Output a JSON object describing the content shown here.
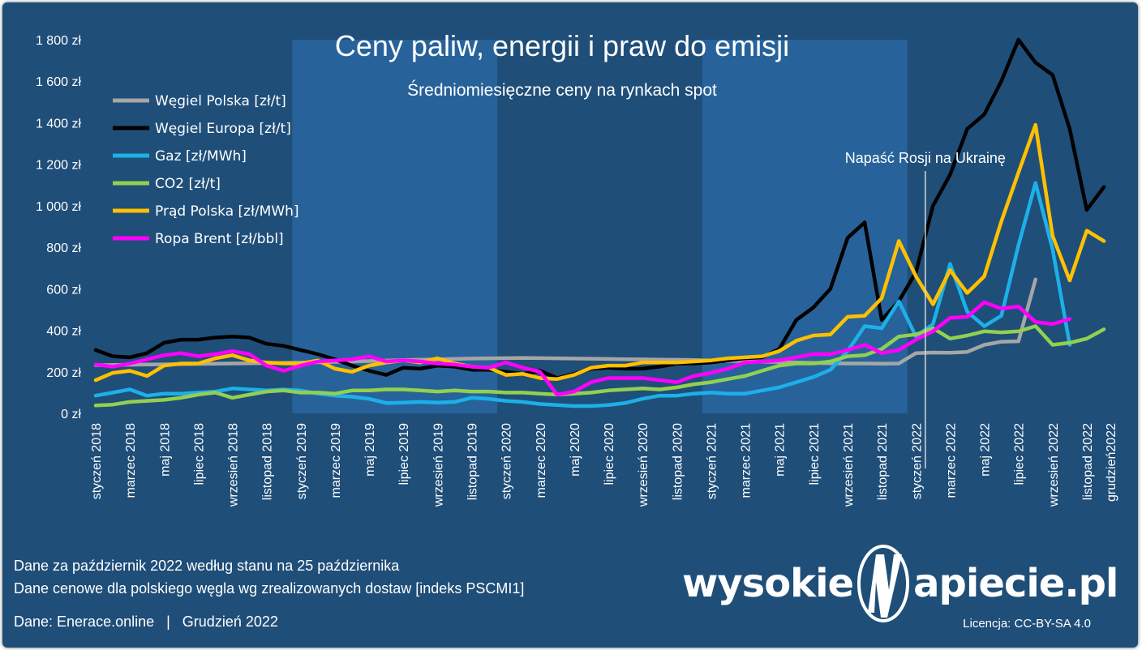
{
  "chart_data": {
    "type": "line",
    "title": "Ceny paliw, energii i praw do emisji",
    "subtitle": "Średniomiesięczne ceny na rynkach spot",
    "x": [
      "2018-01",
      "2018-02",
      "2018-03",
      "2018-04",
      "2018-05",
      "2018-06",
      "2018-07",
      "2018-08",
      "2018-09",
      "2018-10",
      "2018-11",
      "2018-12",
      "2019-01",
      "2019-02",
      "2019-03",
      "2019-04",
      "2019-05",
      "2019-06",
      "2019-07",
      "2019-08",
      "2019-09",
      "2019-10",
      "2019-11",
      "2019-12",
      "2020-01",
      "2020-02",
      "2020-03",
      "2020-04",
      "2020-05",
      "2020-06",
      "2020-07",
      "2020-08",
      "2020-09",
      "2020-10",
      "2020-11",
      "2020-12",
      "2021-01",
      "2021-02",
      "2021-03",
      "2021-04",
      "2021-05",
      "2021-06",
      "2021-07",
      "2021-08",
      "2021-09",
      "2021-10",
      "2021-11",
      "2021-12",
      "2022-01",
      "2022-02",
      "2022-03",
      "2022-04",
      "2022-05",
      "2022-06",
      "2022-07",
      "2022-08",
      "2022-09",
      "2022-10",
      "2022-11",
      "2022-12"
    ],
    "x_tick_labels": [
      "styczeń 2018",
      "marzec 2018",
      "maj 2018",
      "lipiec 2018",
      "wrzesień 2018",
      "listopad 2018",
      "styczeń 2019",
      "marzec 2019",
      "maj 2019",
      "lipiec 2019",
      "wrzesień 2019",
      "listopad 2019",
      "styczeń 2020",
      "marzec 2020",
      "maj 2020",
      "lipiec 2020",
      "wrzesień 2020",
      "listopad 2020",
      "styczeń 2021",
      "marzec 2021",
      "maj 2021",
      "lipiec 2021",
      "wrzesień 2021",
      "listopad 2021",
      "styczeń 2022",
      "marzec 2022",
      "maj 2022",
      "lipiec 2022",
      "wrzesień 2022",
      "listopad 2022",
      "grudzień2022"
    ],
    "y_ticks": [
      "0 zł",
      "200 zł",
      "400 zł",
      "600 zł",
      "800 zł",
      "1 000 zł",
      "1 200 zł",
      "1 400 zł",
      "1 600 zł",
      "1 800 zł"
    ],
    "ylim": [
      0,
      1800
    ],
    "y_unit": "zł",
    "series": [
      {
        "name": "Węgiel Polska [zł/t]",
        "color": "#a6a6a6",
        "values": [
          232,
          233,
          234,
          235,
          236,
          237,
          238,
          239,
          240,
          241,
          242,
          243,
          244,
          246,
          248,
          250,
          252,
          254,
          256,
          258,
          260,
          262,
          264,
          265,
          266,
          267,
          266,
          265,
          264,
          263,
          262,
          261,
          260,
          259,
          258,
          257,
          255,
          253,
          251,
          249,
          247,
          245,
          243,
          241,
          240,
          240,
          239,
          240,
          290,
          293,
          292,
          296,
          330,
          345,
          347,
          645,
          null,
          null,
          null,
          null
        ]
      },
      {
        "name": "Węgiel Europa [zł/t]",
        "color": "#000000",
        "values": [
          305,
          275,
          270,
          290,
          340,
          355,
          355,
          365,
          370,
          365,
          335,
          325,
          305,
          285,
          260,
          230,
          205,
          185,
          220,
          215,
          230,
          225,
          210,
          210,
          200,
          190,
          205,
          170,
          190,
          215,
          220,
          215,
          215,
          225,
          240,
          240,
          245,
          255,
          265,
          270,
          310,
          450,
          510,
          600,
          845,
          920,
          450,
          540,
          680,
          1000,
          1150,
          1370,
          1440,
          1600,
          1800,
          1690,
          1630,
          1370,
          980,
          1090
        ]
      },
      {
        "name": "Gaz [zł/MWh]",
        "color": "#1db0e8",
        "values": [
          85,
          100,
          115,
          85,
          95,
          95,
          100,
          105,
          120,
          115,
          110,
          115,
          110,
          95,
          85,
          80,
          70,
          50,
          52,
          55,
          52,
          55,
          75,
          70,
          60,
          55,
          45,
          40,
          35,
          35,
          40,
          50,
          70,
          85,
          85,
          95,
          100,
          95,
          95,
          110,
          125,
          150,
          175,
          210,
          300,
          420,
          410,
          540,
          370,
          430,
          720,
          490,
          420,
          470,
          810,
          1110,
          790,
          330,
          null,
          null
        ]
      },
      {
        "name": "CO2 [zł/t]",
        "color": "#92d050",
        "values": [
          38,
          42,
          55,
          60,
          65,
          75,
          90,
          100,
          75,
          90,
          105,
          110,
          100,
          100,
          95,
          110,
          110,
          115,
          115,
          110,
          105,
          110,
          105,
          105,
          100,
          100,
          95,
          90,
          95,
          100,
          110,
          115,
          120,
          115,
          125,
          140,
          150,
          165,
          180,
          205,
          230,
          240,
          240,
          250,
          275,
          280,
          310,
          370,
          380,
          410,
          360,
          375,
          395,
          390,
          395,
          420,
          330,
          340,
          360,
          405
        ]
      },
      {
        "name": "Prąd Polska [zł/MWh]",
        "color": "#ffc000",
        "values": [
          160,
          195,
          205,
          180,
          230,
          240,
          240,
          265,
          280,
          255,
          245,
          240,
          240,
          255,
          215,
          200,
          230,
          245,
          255,
          245,
          265,
          240,
          225,
          220,
          185,
          190,
          170,
          165,
          185,
          220,
          230,
          230,
          245,
          245,
          245,
          250,
          255,
          265,
          270,
          275,
          300,
          350,
          375,
          380,
          465,
          470,
          555,
          830,
          660,
          525,
          690,
          580,
          660,
          925,
          1160,
          1390,
          855,
          640,
          880,
          830
        ]
      },
      {
        "name": "Ropa Brent [zł/bbl]",
        "color": "#ff00ff",
        "values": [
          235,
          225,
          240,
          260,
          280,
          290,
          275,
          285,
          300,
          285,
          230,
          205,
          230,
          250,
          255,
          260,
          275,
          250,
          255,
          250,
          240,
          235,
          225,
          220,
          245,
          220,
          200,
          90,
          105,
          150,
          170,
          170,
          170,
          160,
          150,
          180,
          195,
          215,
          245,
          250,
          255,
          270,
          285,
          285,
          305,
          330,
          290,
          305,
          355,
          395,
          460,
          465,
          535,
          505,
          515,
          440,
          430,
          455,
          null,
          null
        ]
      }
    ],
    "annotations": [
      {
        "text": "Napaść Rosji na Ukrainę",
        "x": "2022-02"
      }
    ],
    "legend_position": "top-left",
    "grid": false
  },
  "footer": {
    "note1": "Dane za październik 2022 według stanu na 25 października",
    "note2": "Dane cenowe dla polskiego węgla wg zrealizowanych dostaw [indeks PSCMI1]",
    "source": "Dane: Enerace.online   |   Grudzień 2022",
    "license": "Licencja: CC-BY-SA 4.0"
  },
  "logo": {
    "left": "wysokie",
    "right": "apiecie.pl"
  }
}
